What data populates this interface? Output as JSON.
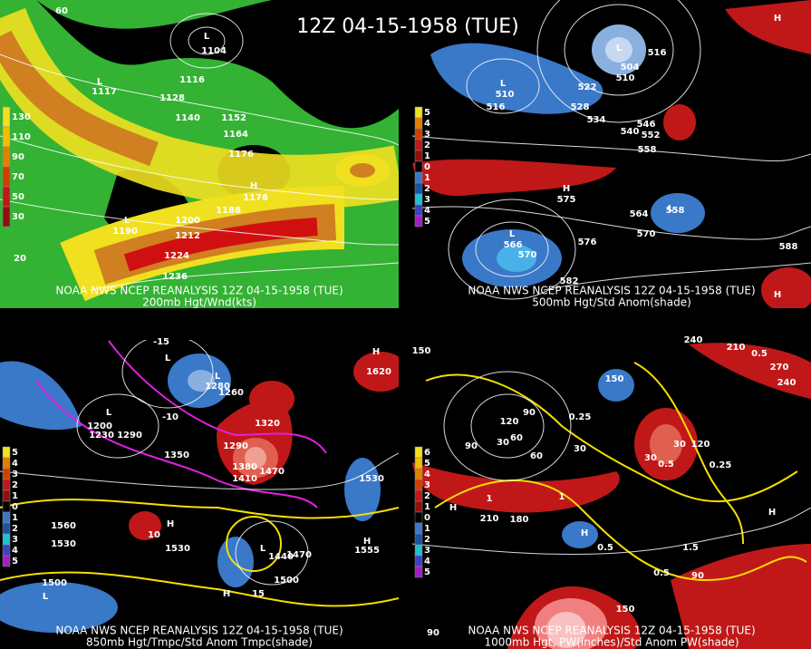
{
  "title": "12Z 04-15-1958 (TUE)",
  "panels": [
    {
      "caption": "NOAA NWS NCEP REANALYSIS 12Z 04-15-1958 (TUE)",
      "subtitle": "200mb Hgt/Wnd(kts)",
      "colorbar": [
        130,
        110,
        90,
        70,
        50,
        30
      ],
      "labels": [
        "L",
        "1104",
        "1116",
        "L",
        "1117",
        "1128",
        "1140",
        "1152",
        "1164",
        "1176",
        "H",
        "1176",
        "1188",
        "L",
        "1190",
        "1200",
        "1212",
        "1224",
        "1236",
        "60",
        "20"
      ]
    },
    {
      "caption": "NOAA NWS NCEP REANALYSIS 12Z 04-15-1958 (TUE)",
      "subtitle": "500mb Hgt/Std Anom(shade)",
      "colorbar": [
        5,
        4,
        3,
        2,
        1,
        0,
        1,
        2,
        3,
        4,
        5
      ],
      "labels": [
        "L",
        "504",
        "510",
        "516",
        "522",
        "528",
        "534",
        "540",
        "546",
        "552",
        "558",
        "L",
        "510",
        "516",
        "H",
        "575",
        "L",
        "558",
        "564",
        "570",
        "576",
        "L",
        "566",
        "570",
        "582",
        "588",
        "H",
        "H"
      ]
    },
    {
      "caption": "NOAA NWS NCEP REANALYSIS 12Z 04-15-1958 (TUE)",
      "subtitle": "850mb Hgt/Tmpc/Std Anom Tmpc(shade)",
      "colorbar": [
        5,
        4,
        3,
        2,
        1,
        0,
        1,
        2,
        3,
        4,
        5
      ],
      "labels": [
        "H",
        "1620",
        "-15",
        "L",
        "L",
        "1280",
        "1260",
        "1320",
        "1290",
        "1350",
        "1380",
        "1410",
        "1470",
        "L",
        "1200",
        "1230",
        "1290",
        "-10",
        "1530",
        "1560",
        "1530",
        "H",
        "10",
        "1530",
        "L",
        "1440",
        "1470",
        "1500",
        "1500",
        "L",
        "H",
        "15",
        "H",
        "1555"
      ]
    },
    {
      "caption": "NOAA NWS NCEP REANALYSIS 12Z 04-15-1958 (TUE)",
      "subtitle": "1000mb Hgt, PW(inches)/Std Anom PW(shade)",
      "colorbar": [
        6,
        5,
        4,
        3,
        2,
        1,
        0,
        1,
        2,
        3,
        4,
        5
      ],
      "labels": [
        "150",
        "240",
        "210",
        "0.5",
        "270",
        "240",
        "90",
        "120",
        "30",
        "60",
        "90",
        "150",
        "0.25",
        "30",
        "60",
        "30",
        "30",
        "120",
        "0.5",
        "0.25",
        "1",
        "1",
        "H",
        "210",
        "180",
        "H",
        "0.5",
        "H",
        "1.5",
        "0.5",
        "90",
        "150",
        "90"
      ]
    }
  ]
}
